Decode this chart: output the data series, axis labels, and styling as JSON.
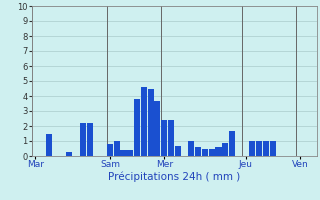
{
  "title": "Précipitations 24h ( mm )",
  "background_color": "#cff0f0",
  "bar_color": "#1a50d0",
  "grid_color": "#aacccc",
  "ylim": [
    0,
    10
  ],
  "yticks": [
    0,
    1,
    2,
    3,
    4,
    5,
    6,
    7,
    8,
    9,
    10
  ],
  "day_labels": [
    "Mar",
    "Sam",
    "Mer",
    "Jeu",
    "Ven"
  ],
  "day_tick_positions": [
    0,
    11,
    19,
    31,
    39
  ],
  "n_bars": 42,
  "values": [
    0.0,
    0.0,
    1.5,
    0.0,
    0.0,
    0.3,
    0.0,
    2.2,
    2.2,
    0.0,
    0.0,
    0.8,
    1.0,
    0.4,
    0.4,
    3.8,
    4.6,
    4.5,
    3.7,
    2.4,
    2.4,
    0.7,
    0.0,
    1.0,
    0.6,
    0.5,
    0.5,
    0.6,
    0.9,
    1.7,
    0.0,
    0.0,
    1.0,
    1.0,
    1.0,
    1.0,
    0.0,
    0.0,
    0.0,
    0.0,
    0.0,
    0.0
  ]
}
